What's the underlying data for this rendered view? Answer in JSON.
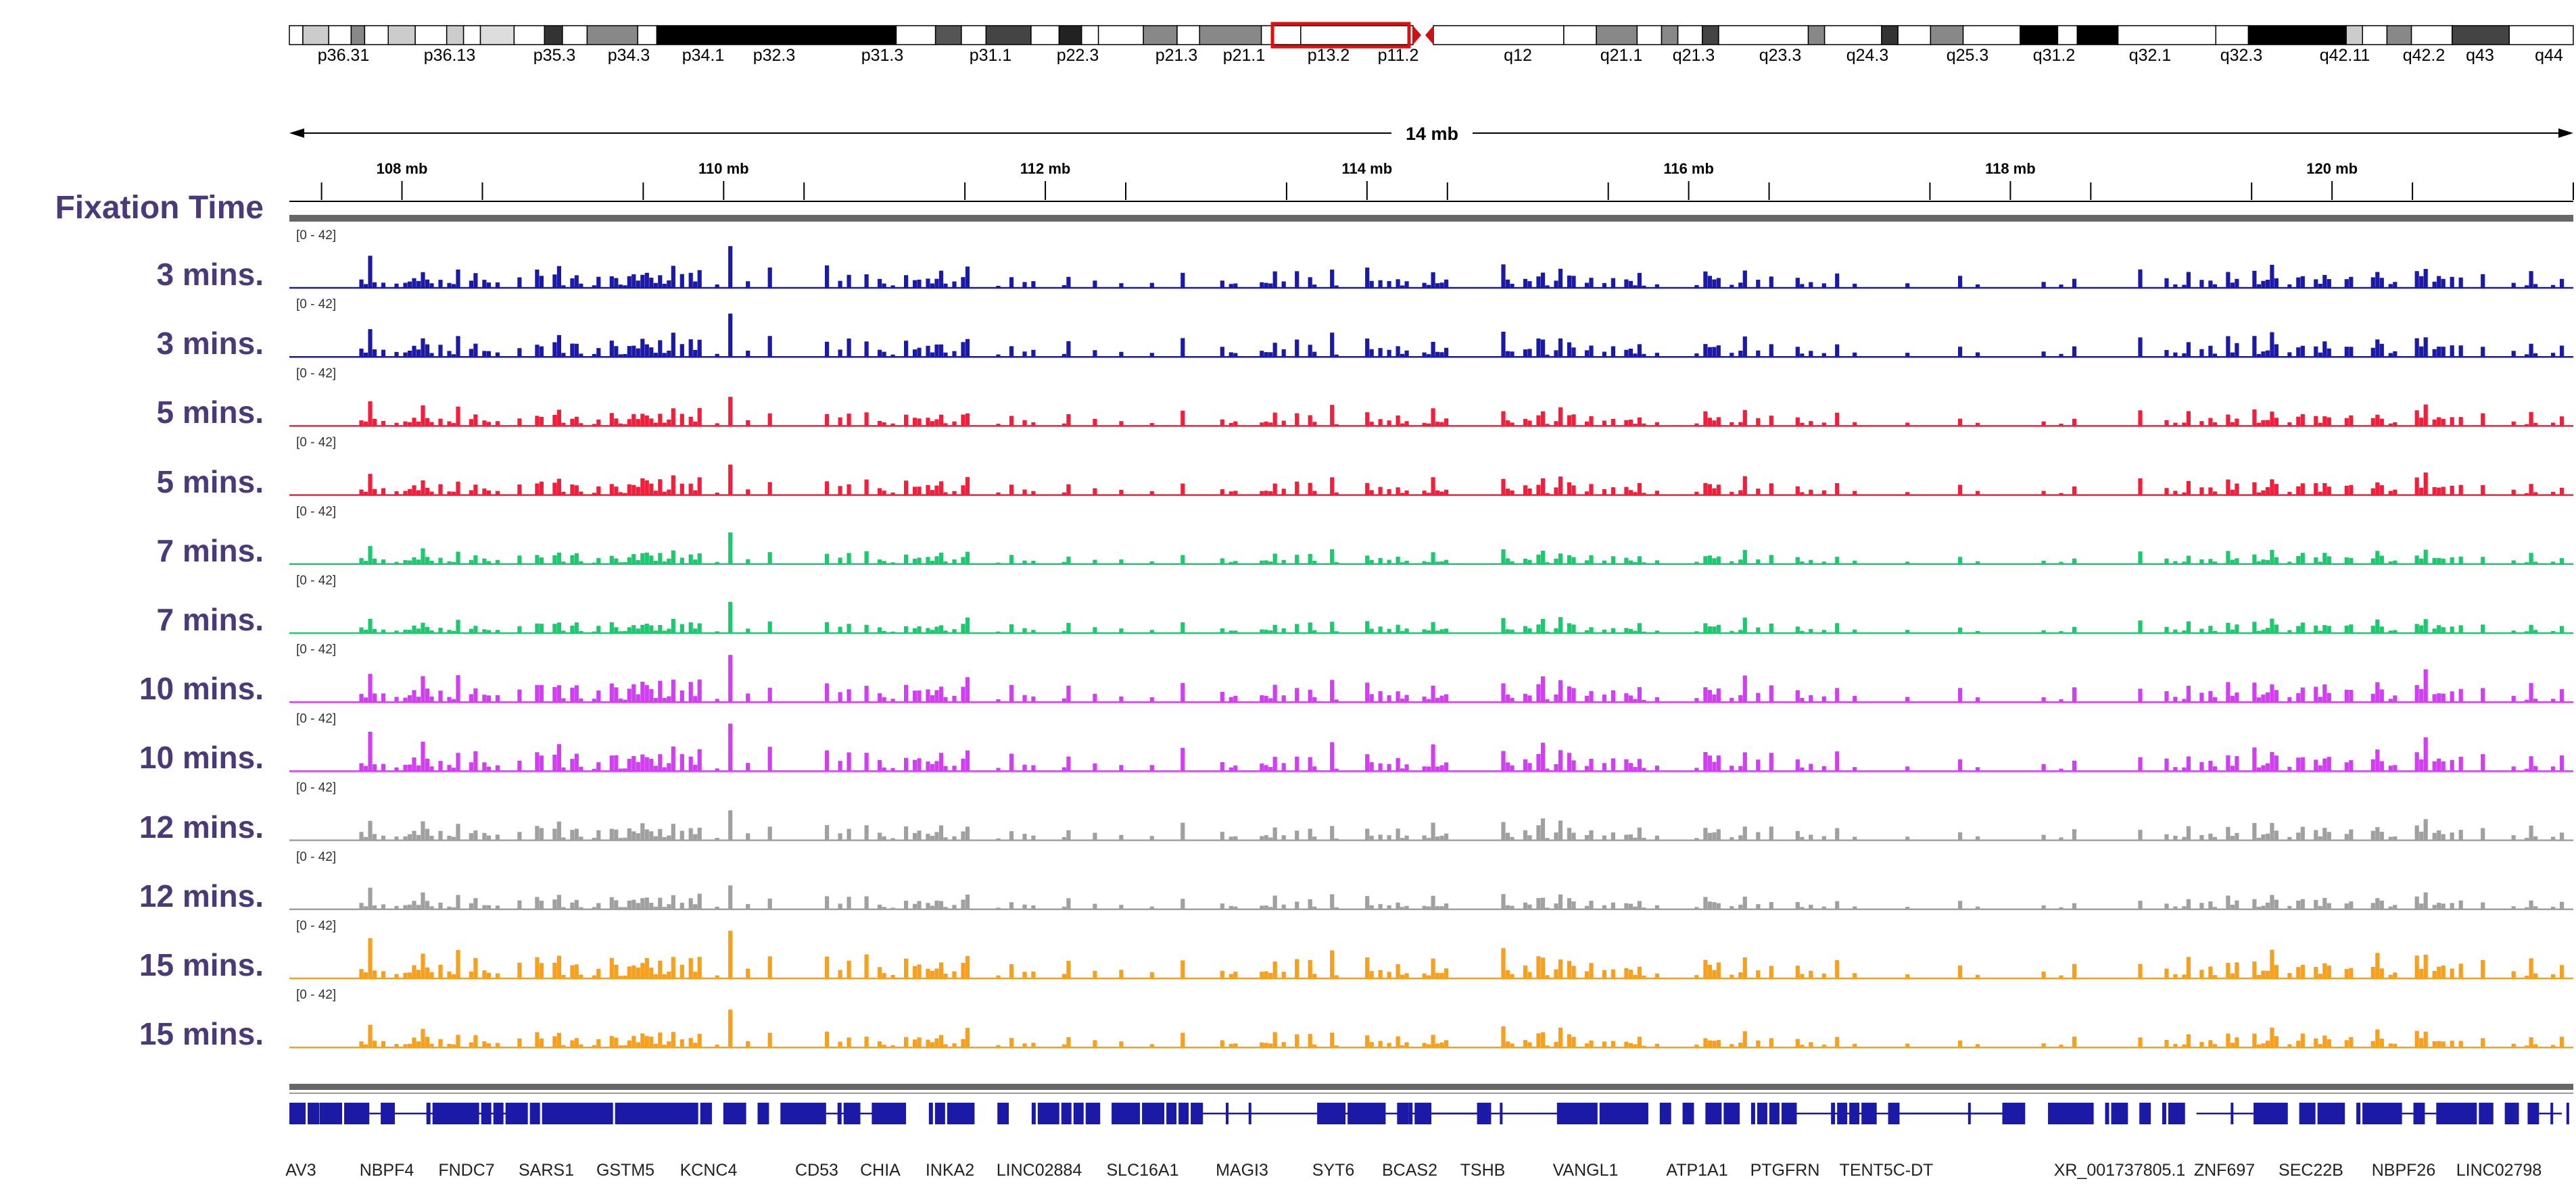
{
  "chart_data": {
    "type": "area",
    "view": "genome-browser-coverage-tracks",
    "track_range_label": "[0 - 42]",
    "ylim": [
      0,
      42
    ],
    "row_header": "Fixation Time",
    "ruler": {
      "span_label": "14 mb",
      "ticks": [
        "108 mb",
        "110 mb",
        "112 mb",
        "114 mb",
        "116 mb",
        "118 mb",
        "120 mb"
      ],
      "xlim_mb": [
        107.3,
        121.5
      ]
    },
    "ideogram": {
      "bands": [
        "p36.31",
        "p36.13",
        "p35.3",
        "p34.3",
        "p34.1",
        "p32.3",
        "p31.3",
        "p31.1",
        "p22.3",
        "p21.3",
        "p21.1",
        "p13.2",
        "p11.2",
        "q12",
        "q21.1",
        "q21.3",
        "q23.3",
        "q24.3",
        "q25.3",
        "q31.2",
        "q32.1",
        "q32.3",
        "q42.11",
        "q42.2",
        "q43",
        "q44"
      ]
    },
    "series": [
      {
        "name": "3 mins.",
        "color": "#1a1aa6",
        "seed": 11
      },
      {
        "name": "3 mins.",
        "color": "#1a1aa6",
        "seed": 12
      },
      {
        "name": "5 mins.",
        "color": "#f0203c",
        "seed": 21
      },
      {
        "name": "5 mins.",
        "color": "#f0203c",
        "seed": 22
      },
      {
        "name": "7 mins.",
        "color": "#1ec86e",
        "seed": 31
      },
      {
        "name": "7 mins.",
        "color": "#1ec86e",
        "seed": 32
      },
      {
        "name": "10 mins.",
        "color": "#d040f0",
        "seed": 41
      },
      {
        "name": "10 mins.",
        "color": "#d040f0",
        "seed": 42
      },
      {
        "name": "12 mins.",
        "color": "#a0a0a0",
        "seed": 51
      },
      {
        "name": "12 mins.",
        "color": "#a0a0a0",
        "seed": 52
      },
      {
        "name": "15 mins.",
        "color": "#f5a01e",
        "seed": 61
      },
      {
        "name": "15 mins.",
        "color": "#f5a01e",
        "seed": 62
      }
    ],
    "genes": [
      "AV3",
      "NBPF4",
      "FNDC7",
      "SARS1",
      "GSTM5",
      "KCNC4",
      "CD53",
      "CHIA",
      "INKA2",
      "LINC02884",
      "SLC16A1",
      "MAGI3",
      "SYT6",
      "BCAS2",
      "TSHB",
      "VANGL1",
      "ATP1A1",
      "PTGFRN",
      "TENT5C-DT",
      "XR_001737805.1",
      "ZNF697",
      "SEC22B",
      "NBPF26",
      "LINC02798"
    ],
    "gene_track_color": "#1a1aa6"
  }
}
